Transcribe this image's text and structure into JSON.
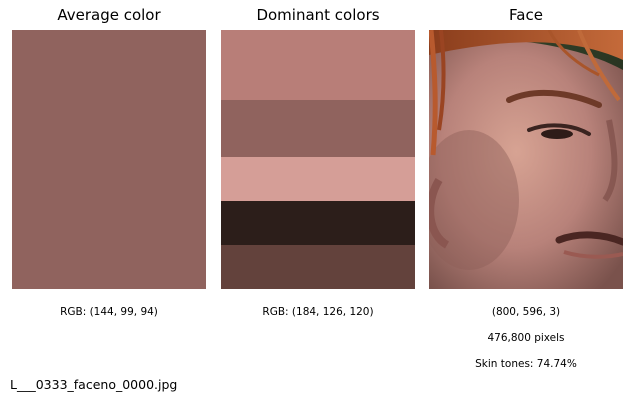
{
  "panels": {
    "average": {
      "title": "Average color",
      "color": "#90635e",
      "rgb_label": "RGB: (144, 99, 94)"
    },
    "dominant": {
      "title": "Dominant colors",
      "rgb_label": "RGB: (184, 126, 120)",
      "swatches": [
        {
          "color": "#b87e78",
          "share": 0.27
        },
        {
          "color": "#90635e",
          "share": 0.22
        },
        {
          "color": "#d59e97",
          "share": 0.17
        },
        {
          "color": "#2c1e1a",
          "share": 0.17
        },
        {
          "color": "#63423c",
          "share": 0.17
        }
      ]
    },
    "face": {
      "title": "Face",
      "shape_label": "(800, 596, 3)",
      "pixels_label": "476,800 pixels",
      "skin_label": "Skin tones: 74.74%"
    }
  },
  "filename": "L___0333_faceno_0000.jpg"
}
